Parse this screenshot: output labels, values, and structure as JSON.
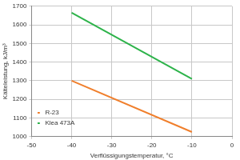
{
  "chart_data": {
    "type": "line",
    "x_label": "Verflüssigungstemperatur, °C",
    "y_label": "Kälteleistung, kJ/m³",
    "x": [
      -40,
      -10
    ],
    "series": [
      {
        "name": "R-23",
        "color": "#f07f2c",
        "values": [
          1300,
          1025
        ]
      },
      {
        "name": "Klea 473A",
        "color": "#2db34a",
        "values": [
          1665,
          1310
        ]
      }
    ],
    "xlim": [
      -50,
      0
    ],
    "xticks": [
      -50,
      -40,
      -30,
      -20,
      -10,
      0
    ],
    "ylim": [
      1000,
      1700
    ],
    "yticks": [
      1000,
      1100,
      1200,
      1300,
      1400,
      1500,
      1600,
      1700
    ],
    "grid": true,
    "legend": "top-right"
  }
}
